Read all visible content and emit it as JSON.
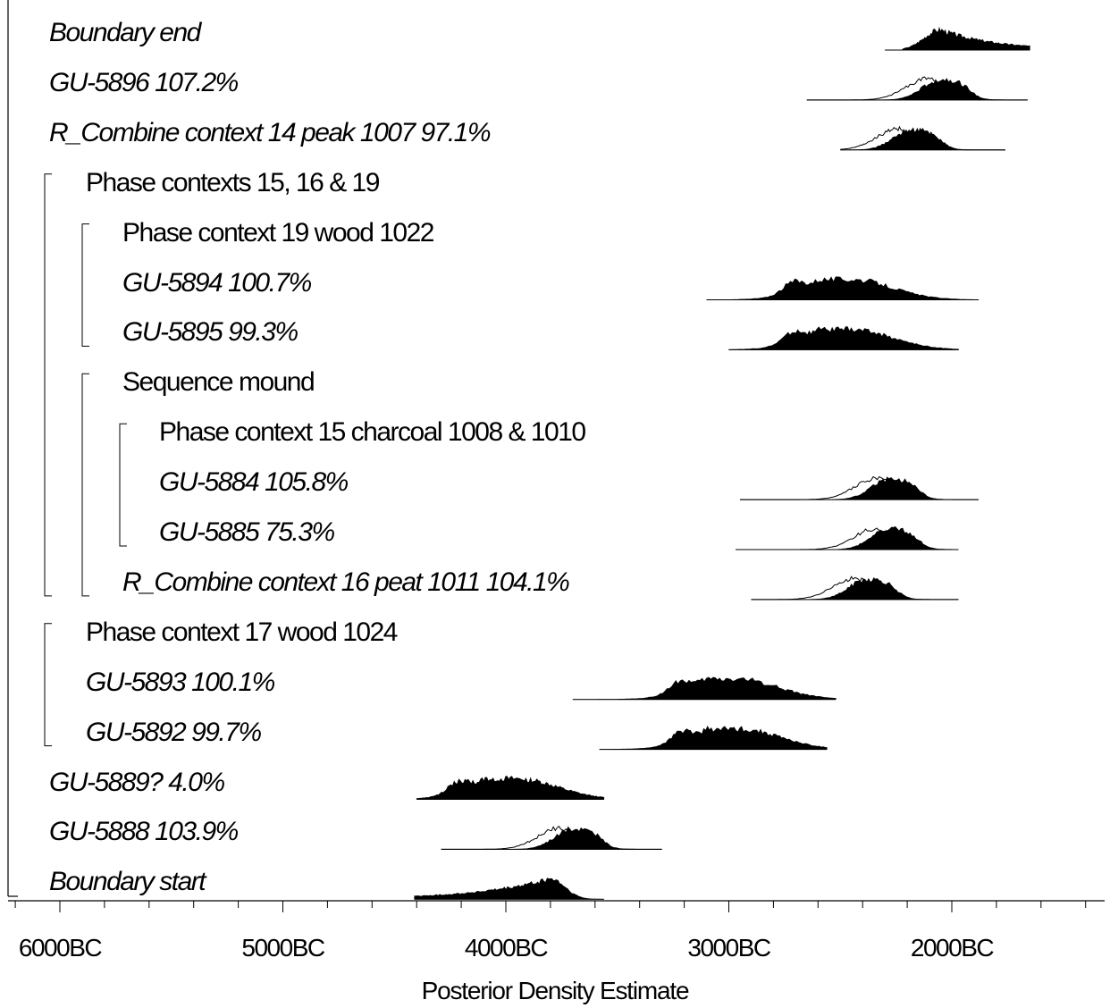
{
  "chart_data": {
    "type": "area",
    "xlabel": "Posterior Density Estimate",
    "x_ticks": [
      "6000BC",
      "5000BC",
      "4000BC",
      "3000BC",
      "2000BC"
    ],
    "x_tick_values": [
      -6000,
      -5000,
      -4000,
      -3000,
      -2000
    ],
    "xlim": [
      -6250,
      -1350
    ],
    "rows": [
      {
        "label": "Boundary end",
        "style": "italic",
        "indent": 0,
        "range": [
          -2300,
          -1650
        ],
        "peak": -2050,
        "shape": "boundary-end"
      },
      {
        "label": "GU-5896  107.2%",
        "style": "italic",
        "indent": 0,
        "range": [
          -2650,
          -1660
        ],
        "peak": -2050,
        "shape": "agreement"
      },
      {
        "label": "R_Combine context 14 peak 1007   97.1%",
        "style": "italic",
        "indent": 0,
        "range": [
          -2500,
          -1760
        ],
        "peak": -2180,
        "shape": "agreement"
      },
      {
        "label": "Phase contexts 15, 16 & 19",
        "style": "normal",
        "indent": 1,
        "bracket_open": true
      },
      {
        "label": "Phase context 19 wood 1022",
        "style": "normal",
        "indent": 2,
        "bracket_open": true
      },
      {
        "label": "GU-5894  100.7%",
        "style": "italic",
        "indent": 2,
        "range": [
          -3100,
          -1880
        ],
        "peak": -2450,
        "shape": "multi"
      },
      {
        "label": "GU-5895   99.3%",
        "style": "italic",
        "indent": 2,
        "range": [
          -3000,
          -1970
        ],
        "peak": -2450,
        "shape": "multi",
        "bracket_close": true
      },
      {
        "label": "Sequence mound",
        "style": "normal",
        "indent": 2,
        "bracket_open": true
      },
      {
        "label": "Phase context 15 charcoal 1008 & 1010",
        "style": "normal",
        "indent": 3,
        "bracket_open": true
      },
      {
        "label": "GU-5884  105.8%",
        "style": "italic",
        "indent": 3,
        "range": [
          -2950,
          -1880
        ],
        "peak": -2280,
        "shape": "agreement"
      },
      {
        "label": "GU-5885   75.3%",
        "style": "italic",
        "indent": 3,
        "range": [
          -2970,
          -1970
        ],
        "peak": -2280,
        "shape": "agreement",
        "bracket_close": true
      },
      {
        "label": "R_Combine context 16 peat 1011  104.1%",
        "style": "italic",
        "indent": 2,
        "range": [
          -2900,
          -1970
        ],
        "peak": -2380,
        "shape": "agreement",
        "bracket_close_levels": 2
      },
      {
        "label": "Phase context 17 wood 1024",
        "style": "normal",
        "indent": 1,
        "bracket_open": true
      },
      {
        "label": "GU-5893  100.1%",
        "style": "italic",
        "indent": 1,
        "range": [
          -3700,
          -2520
        ],
        "peak": -2960,
        "shape": "multi"
      },
      {
        "label": "GU-5892   99.7%",
        "style": "italic",
        "indent": 1,
        "range": [
          -3580,
          -2560
        ],
        "peak": -2950,
        "shape": "multi",
        "bracket_close": true
      },
      {
        "label": "GU-5889?    4.0%",
        "style": "italic",
        "indent": 0,
        "range": [
          -4400,
          -3560
        ],
        "peak": -3950,
        "shape": "multi"
      },
      {
        "label": "GU-5888  103.9%",
        "style": "italic",
        "indent": 0,
        "range": [
          -4290,
          -3300
        ],
        "peak": -3700,
        "shape": "agreement"
      },
      {
        "label": "Boundary start",
        "style": "italic",
        "indent": 0,
        "range": [
          -4410,
          -3560
        ],
        "peak": -3800,
        "shape": "boundary-start"
      }
    ]
  }
}
